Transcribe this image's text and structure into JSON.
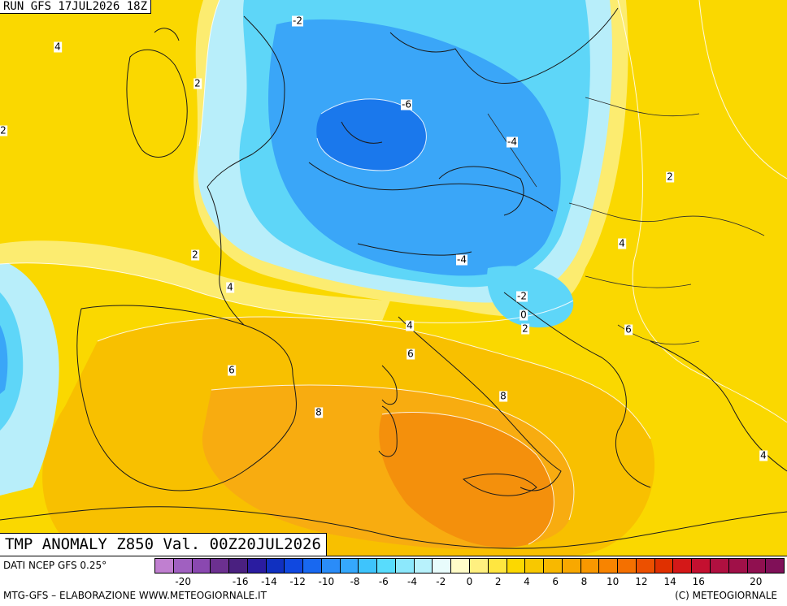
{
  "header": {
    "run_label": "RUN GFS 17JUL2026 18Z"
  },
  "title": "TMP ANOMALY Z850 Val. 00Z20JUL2026",
  "contour_labels": [
    "-2",
    "4",
    "2",
    "2",
    "-6",
    "-4",
    "2",
    "4",
    "2",
    "4",
    "-4",
    "-2",
    "0",
    "2",
    "6",
    "4",
    "6",
    "6",
    "8",
    "8",
    "4"
  ],
  "footer": {
    "source": "DATI NCEP GFS 0.25°",
    "credit_left": "MTG-GFS – ELABORAZIONE WWW.METEOGIORNALE.IT",
    "credit_right": "(C) METEOGIORNALE"
  },
  "legend": {
    "colors": [
      "#c07fd0",
      "#a060c0",
      "#8a48b0",
      "#6c3090",
      "#4a2080",
      "#2a1ca0",
      "#1030c0",
      "#1048e0",
      "#1868f0",
      "#2a8cf8",
      "#35a8fc",
      "#3ec4fc",
      "#58dcfc",
      "#8ce8fc",
      "#b8f2fc",
      "#e8fcfc",
      "#fffcc8",
      "#fff080",
      "#ffe640",
      "#fcd800",
      "#f8c800",
      "#f8b800",
      "#f8a800",
      "#f89800",
      "#f88400",
      "#f47000",
      "#ec5000",
      "#e03000",
      "#d41818",
      "#c41030",
      "#b01040",
      "#a01048",
      "#901050",
      "#801058"
    ],
    "tick_labels": [
      "-20",
      "-16",
      "-14",
      "-12",
      "-10",
      "-8",
      "-6",
      "-4",
      "-2",
      "0",
      "2",
      "4",
      "6",
      "8",
      "10",
      "12",
      "14",
      "16",
      "20"
    ],
    "tick_values": [
      -20,
      -16,
      -14,
      -12,
      -10,
      -8,
      -6,
      -4,
      -2,
      0,
      2,
      4,
      6,
      8,
      10,
      12,
      14,
      16,
      20
    ],
    "range": [
      -22,
      22
    ]
  },
  "colors": {
    "anomaly_neg6": "#1a78ec",
    "anomaly_neg4": "#3aa6f8",
    "anomaly_neg2": "#5ed6f8",
    "anomaly_0": "#b8eefa",
    "anomaly_2": "#fcec70",
    "anomaly_4": "#fad800",
    "anomaly_6": "#f8c000",
    "anomaly_8": "#f8a410",
    "anomaly_10": "#f4900c"
  }
}
